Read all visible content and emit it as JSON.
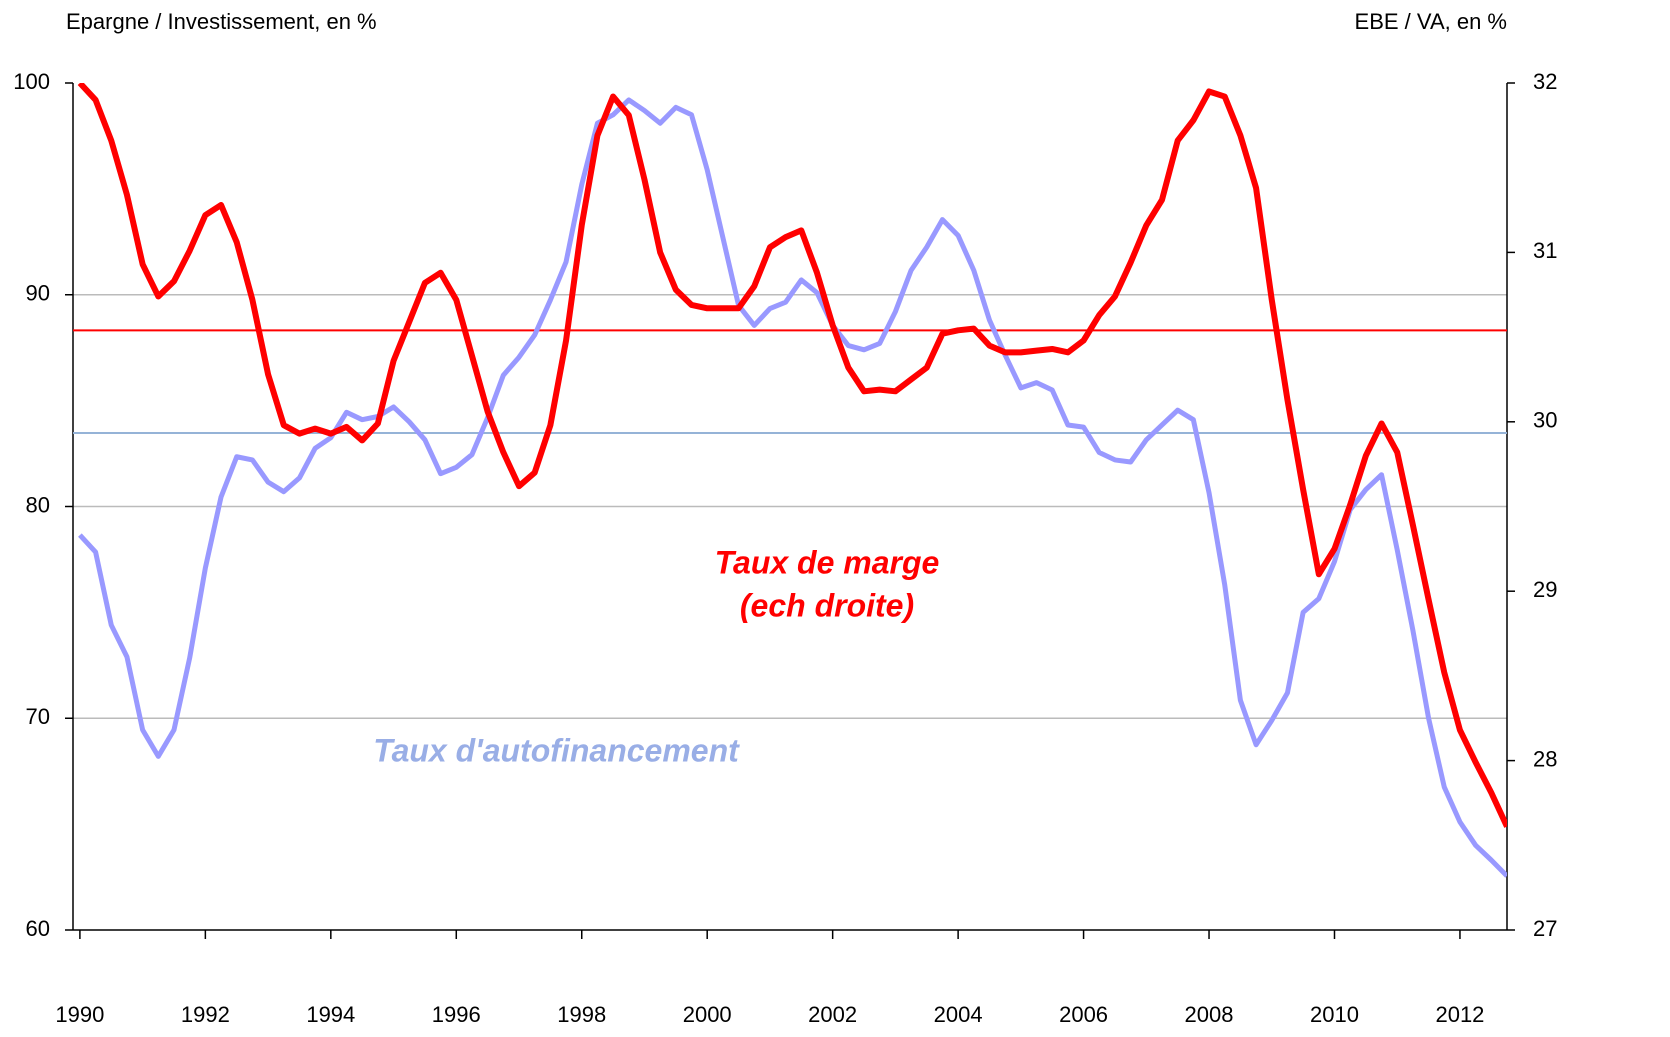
{
  "chart_data": {
    "type": "line",
    "y_label": "Epargne / Investissement, en %",
    "y2_label": "EBE / VA, en %",
    "x": [
      1990,
      1990.25,
      1990.5,
      1990.75,
      1991,
      1991.25,
      1991.5,
      1991.75,
      1992,
      1992.25,
      1992.5,
      1992.75,
      1993,
      1993.25,
      1993.5,
      1993.75,
      1994,
      1994.25,
      1994.5,
      1994.75,
      1995,
      1995.25,
      1995.5,
      1995.75,
      1996,
      1996.25,
      1996.5,
      1996.75,
      1997,
      1997.25,
      1997.5,
      1997.75,
      1998,
      1998.25,
      1998.5,
      1998.75,
      1999,
      1999.25,
      1999.5,
      1999.75,
      2000,
      2000.25,
      2000.5,
      2000.75,
      2001,
      2001.25,
      2001.5,
      2001.75,
      2002,
      2002.25,
      2002.5,
      2002.75,
      2003,
      2003.25,
      2003.5,
      2003.75,
      2004,
      2004.25,
      2004.5,
      2004.75,
      2005,
      2005.25,
      2005.5,
      2005.75,
      2006,
      2006.25,
      2006.5,
      2006.75,
      2007,
      2007.25,
      2007.5,
      2007.75,
      2008,
      2008.25,
      2008.5,
      2008.75,
      2009,
      2009.25,
      2009.5,
      2009.75,
      2010,
      2010.25,
      2010.5,
      2010.75,
      2011,
      2011.25,
      2011.5,
      2011.75,
      2012,
      2012.25,
      2012.5,
      2012.75
    ],
    "xlim": [
      1989.89,
      2012.75
    ],
    "xticks": [
      1990,
      1992,
      1994,
      1996,
      1998,
      2000,
      2002,
      2004,
      2006,
      2008,
      2010,
      2012
    ],
    "ylim": [
      60,
      100
    ],
    "yticks": [
      60,
      70,
      80,
      90,
      100
    ],
    "y2lim": [
      27,
      32
    ],
    "y2ticks": [
      27,
      28,
      29,
      30,
      31,
      32
    ],
    "grid": true,
    "series": [
      {
        "name": "Taux d'autofinancement",
        "color": "#9999ff",
        "axis": "y",
        "values": [
          78.65,
          77.85,
          74.4,
          72.9,
          69.45,
          68.2,
          69.45,
          72.85,
          77.1,
          80.45,
          82.35,
          82.2,
          81.15,
          80.7,
          81.35,
          82.75,
          83.25,
          84.45,
          84.1,
          84.25,
          84.7,
          84.0,
          83.15,
          81.55,
          81.85,
          82.45,
          84.2,
          86.2,
          87.05,
          88.1,
          89.75,
          91.55,
          95.2,
          98.1,
          98.5,
          99.2,
          98.7,
          98.1,
          98.85,
          98.5,
          95.9,
          92.7,
          89.5,
          88.55,
          89.35,
          89.65,
          90.7,
          90.1,
          88.55,
          87.6,
          87.4,
          87.7,
          89.2,
          91.15,
          92.25,
          93.55,
          92.8,
          91.15,
          88.8,
          87.15,
          85.6,
          85.85,
          85.5,
          83.85,
          83.75,
          82.55,
          82.2,
          82.1,
          83.15,
          83.85,
          84.55,
          84.1,
          80.65,
          76.3,
          70.85,
          68.75,
          69.9,
          71.2,
          75.0,
          75.65,
          77.4,
          79.85,
          80.8,
          81.5,
          77.95,
          74.15,
          70.0,
          66.75,
          65.1,
          64.0,
          63.3,
          62.55
        ]
      },
      {
        "name": "Taux de marge (ech droite)",
        "color": "#ff0000",
        "axis": "y2",
        "values": [
          32.0,
          31.9,
          31.66,
          31.34,
          30.93,
          30.74,
          30.83,
          31.01,
          31.22,
          31.28,
          31.06,
          30.72,
          30.28,
          29.98,
          29.93,
          29.96,
          29.93,
          29.97,
          29.89,
          29.99,
          30.36,
          30.59,
          30.82,
          30.88,
          30.72,
          30.39,
          30.06,
          29.82,
          29.62,
          29.7,
          29.98,
          30.48,
          31.16,
          31.69,
          31.92,
          31.81,
          31.43,
          31.0,
          30.78,
          30.69,
          30.67,
          30.67,
          30.67,
          30.8,
          31.03,
          31.09,
          31.13,
          30.88,
          30.57,
          30.32,
          30.18,
          30.19,
          30.18,
          30.25,
          30.32,
          30.52,
          30.54,
          30.55,
          30.45,
          30.41,
          30.41,
          30.42,
          30.43,
          30.41,
          30.48,
          30.63,
          30.74,
          30.94,
          31.16,
          31.31,
          31.66,
          31.78,
          31.95,
          31.92,
          31.69,
          31.38,
          30.72,
          30.13,
          29.6,
          29.1,
          29.25,
          29.51,
          29.8,
          29.99,
          29.82,
          29.39,
          28.95,
          28.52,
          28.18,
          27.99,
          27.81,
          27.61
        ]
      }
    ],
    "reference_lines": [
      {
        "value": 83.47,
        "axis": "y",
        "color": "#95b3d7"
      },
      {
        "value": 30.54,
        "axis": "y2",
        "color": "#ff0000"
      }
    ],
    "annotations": [
      {
        "text": "Taux de marge",
        "color": "#ff0000"
      },
      {
        "text": "(ech droite)",
        "color": "#ff0000"
      },
      {
        "text": "Taux d'autofinancement",
        "color": "#99aee6"
      }
    ]
  }
}
